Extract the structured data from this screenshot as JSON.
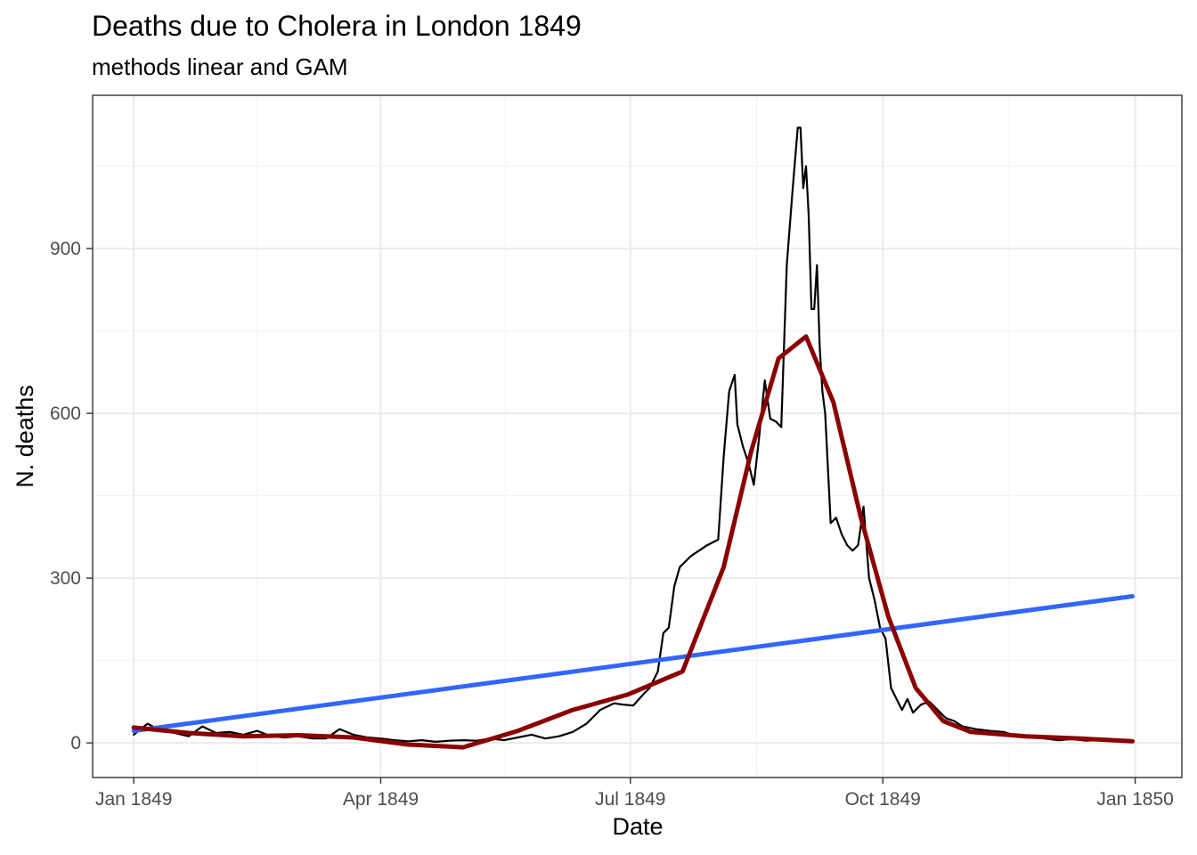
{
  "chart_data": {
    "type": "line",
    "title": "Deaths due to Cholera in London 1849",
    "subtitle": "methods linear and GAM",
    "xlabel": "Date",
    "ylabel": "N. deaths",
    "x_tick_labels": [
      "Jan 1849",
      "Apr 1849",
      "Jul 1849",
      "Oct 1849",
      "Jan 1850"
    ],
    "y_tick_labels": [
      "0",
      "300",
      "600",
      "900"
    ],
    "y_ticks": [
      0,
      300,
      600,
      900
    ],
    "xlim": [
      "1848-12-17",
      "1850-01-18"
    ],
    "ylim": [
      -63,
      1179
    ],
    "grid": true,
    "legend": "none",
    "series": [
      {
        "color": "#000000",
        "x": [
          "1849-01-01",
          "1849-01-06",
          "1849-01-11",
          "1849-01-16",
          "1849-01-21",
          "1849-01-26",
          "1849-01-31",
          "1849-02-05",
          "1849-02-10",
          "1849-02-15",
          "1849-02-20",
          "1849-02-25",
          "1849-03-02",
          "1849-03-07",
          "1849-03-12",
          "1849-03-17",
          "1849-03-22",
          "1849-03-27",
          "1849-04-01",
          "1849-04-06",
          "1849-04-11",
          "1849-04-16",
          "1849-04-21",
          "1849-04-26",
          "1849-05-01",
          "1849-05-06",
          "1849-05-11",
          "1849-05-16",
          "1849-05-21",
          "1849-05-26",
          "1849-05-31",
          "1849-06-05",
          "1849-06-10",
          "1849-06-15",
          "1849-06-20",
          "1849-06-25",
          "1849-06-28",
          "1849-07-02",
          "1849-07-06",
          "1849-07-08",
          "1849-07-11",
          "1849-07-13",
          "1849-07-15",
          "1849-07-17",
          "1849-07-19",
          "1849-07-21",
          "1849-07-23",
          "1849-07-26",
          "1849-07-29",
          "1849-08-02",
          "1849-08-04",
          "1849-08-06",
          "1849-08-08",
          "1849-08-09",
          "1849-08-11",
          "1849-08-13",
          "1849-08-15",
          "1849-08-17",
          "1849-08-19",
          "1849-08-21",
          "1849-08-23",
          "1849-08-25",
          "1849-08-27",
          "1849-08-29",
          "1849-08-31",
          "1849-09-01",
          "1849-09-02",
          "1849-09-03",
          "1849-09-04",
          "1849-09-05",
          "1849-09-06",
          "1849-09-07",
          "1849-09-08",
          "1849-09-09",
          "1849-09-10",
          "1849-09-12",
          "1849-09-14",
          "1849-09-16",
          "1849-09-18",
          "1849-09-20",
          "1849-09-22",
          "1849-09-24",
          "1849-09-26",
          "1849-09-28",
          "1849-09-30",
          "1849-10-02",
          "1849-10-04",
          "1849-10-06",
          "1849-10-08",
          "1849-10-10",
          "1849-10-12",
          "1849-10-15",
          "1849-10-18",
          "1849-10-21",
          "1849-10-24",
          "1849-10-27",
          "1849-10-30",
          "1849-11-04",
          "1849-11-09",
          "1849-11-14",
          "1849-11-19",
          "1849-11-24",
          "1849-11-29",
          "1849-12-04",
          "1849-12-09",
          "1849-12-14",
          "1849-12-19",
          "1849-12-24",
          "1849-12-31"
        ],
        "y": [
          15,
          35,
          22,
          18,
          12,
          30,
          18,
          20,
          15,
          22,
          12,
          10,
          12,
          8,
          8,
          25,
          15,
          10,
          8,
          5,
          3,
          5,
          2,
          4,
          5,
          4,
          8,
          5,
          10,
          15,
          8,
          12,
          20,
          35,
          60,
          72,
          70,
          68,
          90,
          100,
          130,
          200,
          210,
          285,
          320,
          330,
          340,
          350,
          360,
          370,
          520,
          640,
          670,
          580,
          540,
          510,
          470,
          560,
          660,
          590,
          585,
          575,
          870,
          1000,
          1120,
          1120,
          1010,
          1050,
          960,
          790,
          790,
          870,
          720,
          640,
          600,
          400,
          410,
          380,
          360,
          350,
          360,
          430,
          300,
          260,
          210,
          190,
          100,
          80,
          60,
          80,
          55,
          70,
          75,
          60,
          45,
          40,
          30,
          25,
          22,
          20,
          12,
          10,
          8,
          5,
          7,
          4,
          5,
          3,
          2
        ]
      },
      {
        "color": "#3366ff",
        "x": [
          "1849-01-01",
          "1849-12-31"
        ],
        "y": [
          22,
          267
        ]
      },
      {
        "color": "#8b0000",
        "x": [
          "1849-01-01",
          "1849-01-21",
          "1849-02-10",
          "1849-03-02",
          "1849-03-22",
          "1849-04-11",
          "1849-05-01",
          "1849-05-21",
          "1849-06-10",
          "1849-06-30",
          "1849-07-20",
          "1849-08-04",
          "1849-08-14",
          "1849-08-24",
          "1849-09-03",
          "1849-09-13",
          "1849-09-23",
          "1849-10-03",
          "1849-10-13",
          "1849-10-23",
          "1849-11-02",
          "1849-11-22",
          "1849-12-12",
          "1849-12-31"
        ],
        "y": [
          28,
          18,
          12,
          14,
          10,
          -3,
          -8,
          22,
          60,
          88,
          130,
          320,
          530,
          700,
          740,
          620,
          410,
          230,
          100,
          40,
          20,
          12,
          8,
          3
        ]
      }
    ]
  }
}
